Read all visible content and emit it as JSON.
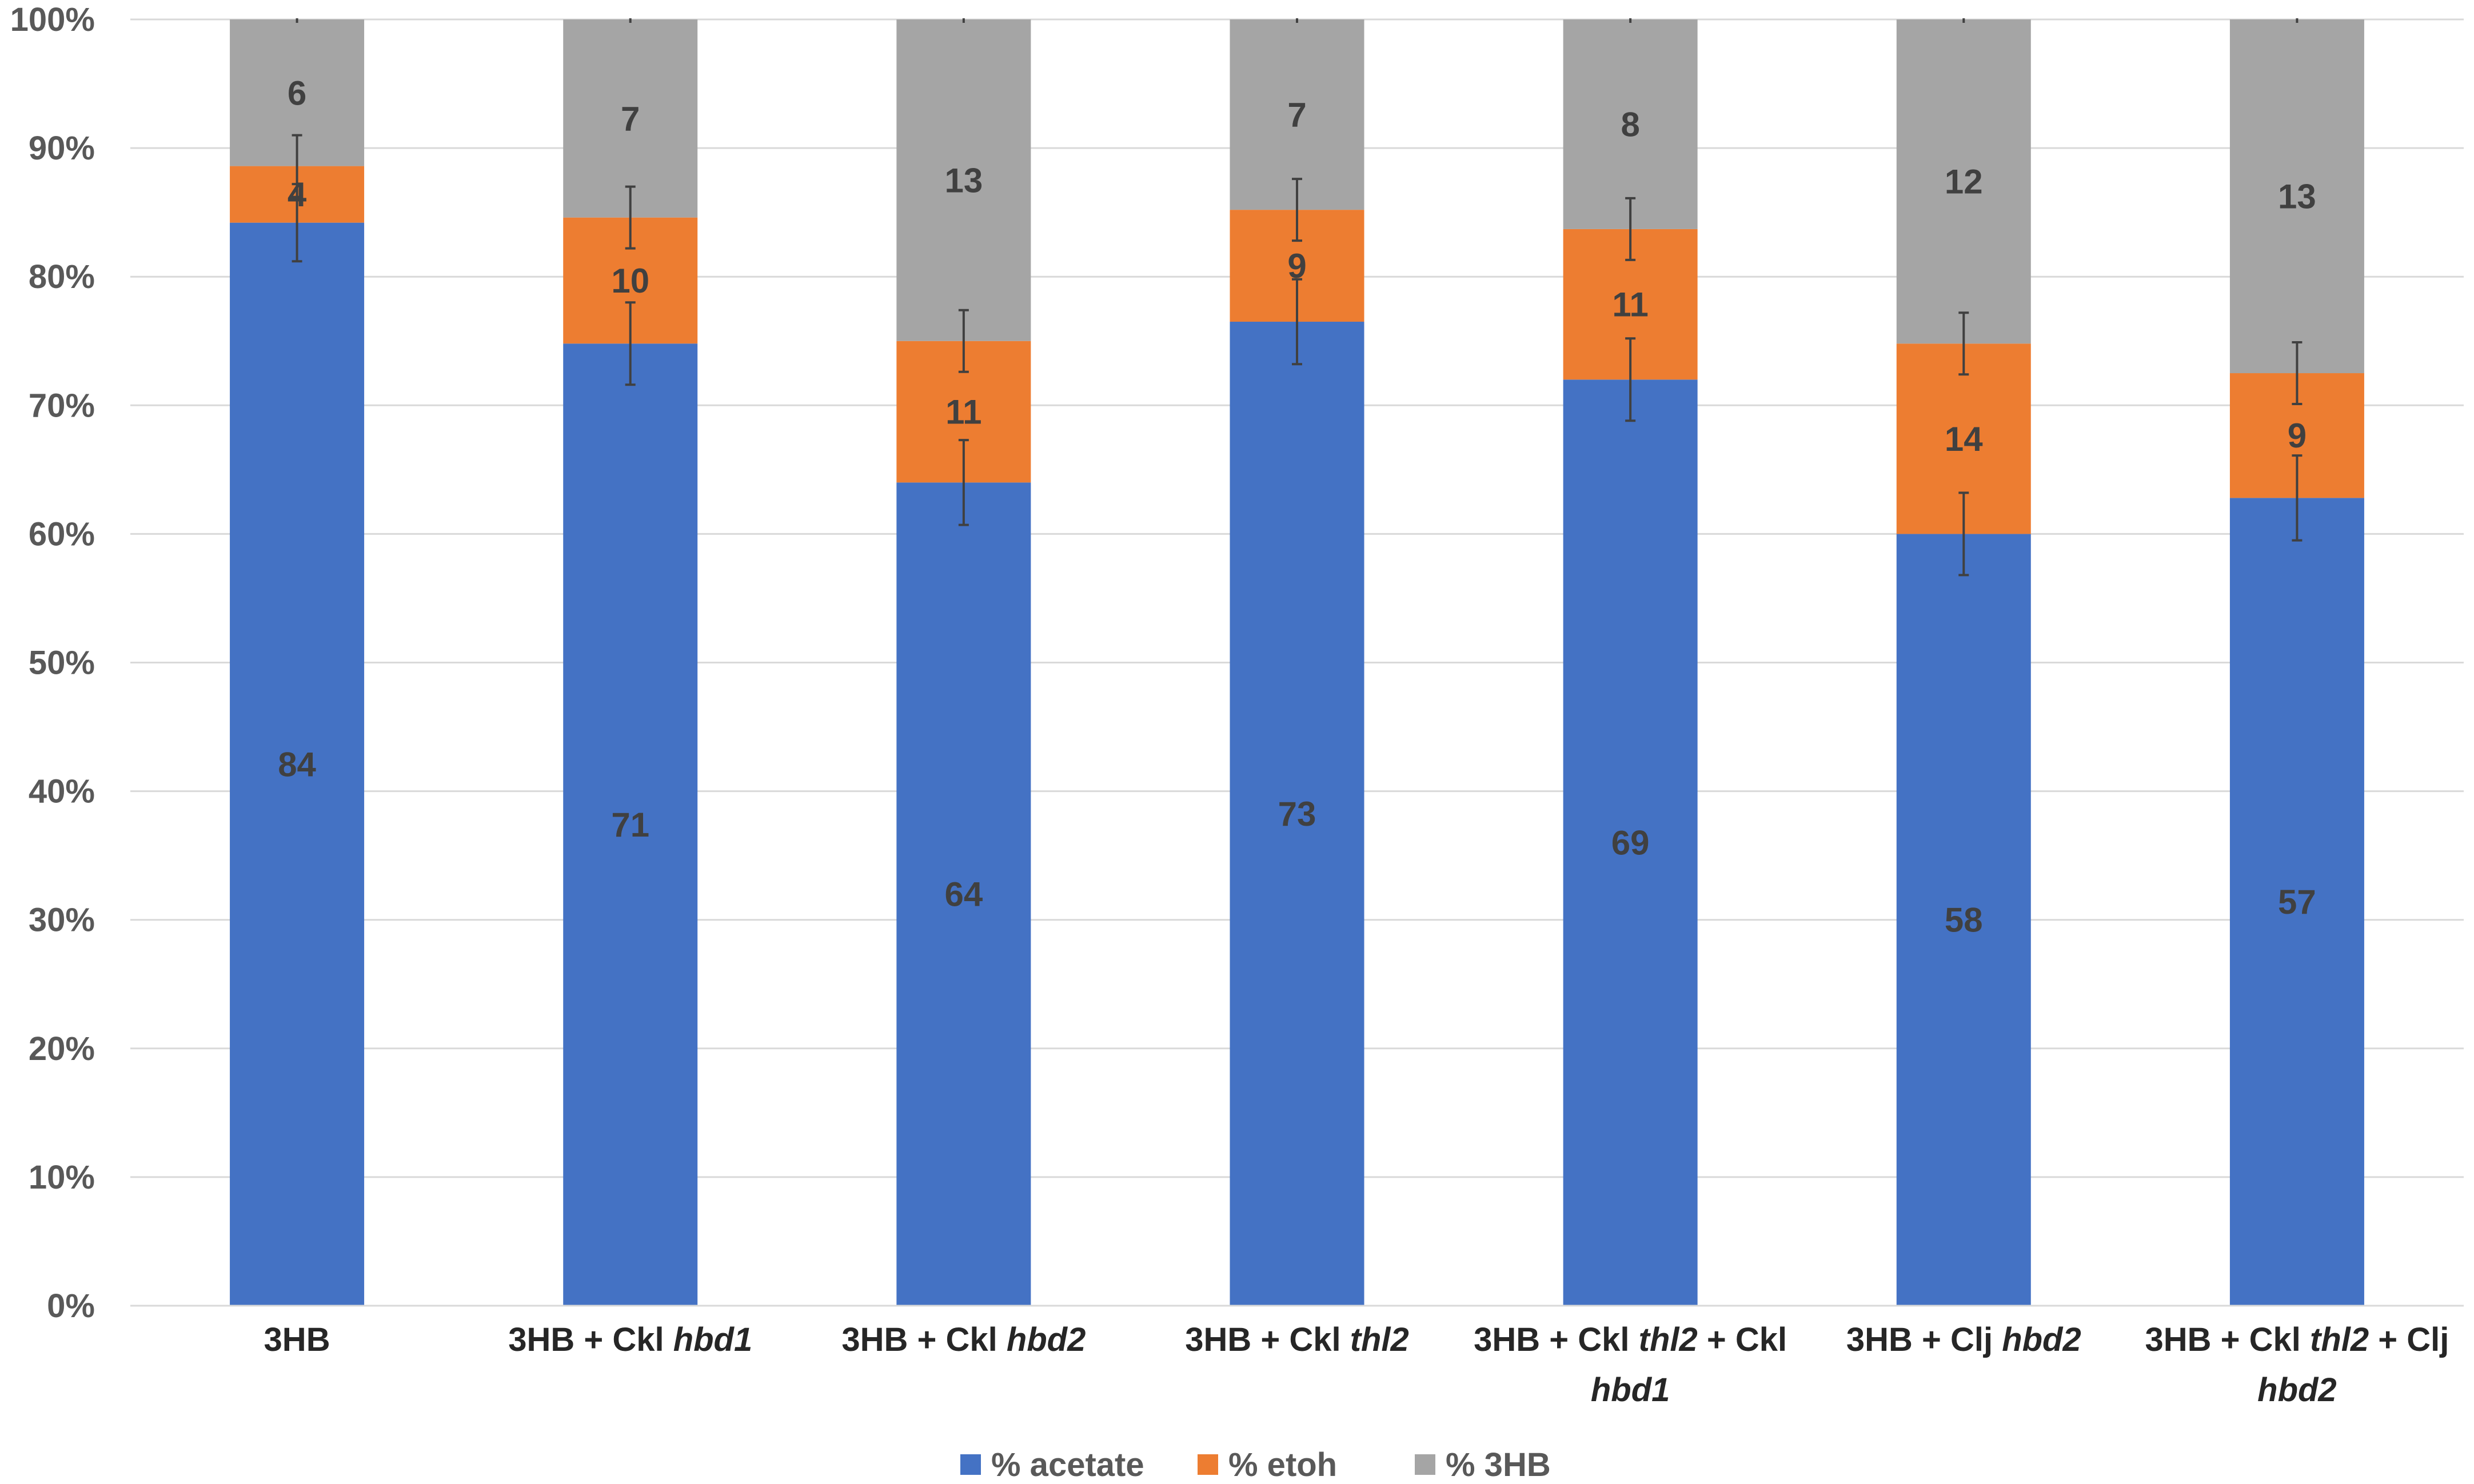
{
  "chart_data": {
    "type": "bar",
    "stacked": true,
    "percent": true,
    "title": "",
    "xlabel": "",
    "ylabel": "",
    "ylim": [
      0,
      100
    ],
    "y_ticks": [
      "0%",
      "10%",
      "20%",
      "30%",
      "40%",
      "50%",
      "60%",
      "70%",
      "80%",
      "90%",
      "100%"
    ],
    "grid": true,
    "legend_position": "bottom",
    "categories": [
      [
        {
          "t": "3HB",
          "i": false
        }
      ],
      [
        {
          "t": "3HB + Ckl ",
          "i": false
        },
        {
          "t": "hbd1",
          "i": true
        }
      ],
      [
        {
          "t": "3HB + Ckl ",
          "i": false
        },
        {
          "t": "hbd2",
          "i": true
        }
      ],
      [
        {
          "t": "3HB + Ckl ",
          "i": false
        },
        {
          "t": "thl2",
          "i": true
        }
      ],
      [
        {
          "t": "3HB + Ckl ",
          "i": false
        },
        {
          "t": "thl2",
          "i": true
        },
        {
          "t": " + Ckl",
          "i": false
        }
      ],
      [
        {
          "t": "3HB + Clj ",
          "i": false
        },
        {
          "t": "hbd2",
          "i": true
        }
      ],
      [
        {
          "t": "3HB + Ckl ",
          "i": false
        },
        {
          "t": "thl2",
          "i": true
        },
        {
          "t": " + Clj",
          "i": false
        }
      ]
    ],
    "categories_line2": [
      [],
      [],
      [],
      [],
      [
        {
          "t": "hbd1",
          "i": true
        }
      ],
      [],
      [
        {
          "t": "hbd2",
          "i": true
        }
      ]
    ],
    "series": [
      {
        "name": "% acetate",
        "color": "#4472c4",
        "values": [
          84,
          71,
          64,
          73,
          69,
          58,
          57
        ],
        "fractions": [
          84.2,
          74.8,
          64.0,
          76.5,
          72.0,
          60.0,
          62.8
        ],
        "error": [
          3.0,
          3.2,
          3.3,
          3.3,
          3.2,
          3.2,
          3.3
        ]
      },
      {
        "name": "% etoh",
        "color": "#ed7d31",
        "values": [
          4,
          10,
          11,
          9,
          11,
          14,
          9
        ],
        "fractions": [
          4.4,
          9.8,
          11.0,
          8.7,
          11.7,
          14.8,
          9.7
        ],
        "error": [
          2.4,
          2.4,
          2.4,
          2.4,
          2.4,
          2.4,
          2.4
        ]
      },
      {
        "name": "% 3HB",
        "color": "#a5a5a5",
        "values": [
          6,
          7,
          13,
          7,
          8,
          12,
          13
        ],
        "fractions": [
          11.4,
          15.4,
          25.0,
          14.8,
          16.3,
          25.2,
          27.5
        ],
        "error": [
          0,
          0,
          0,
          0,
          0,
          0,
          0
        ]
      }
    ]
  }
}
